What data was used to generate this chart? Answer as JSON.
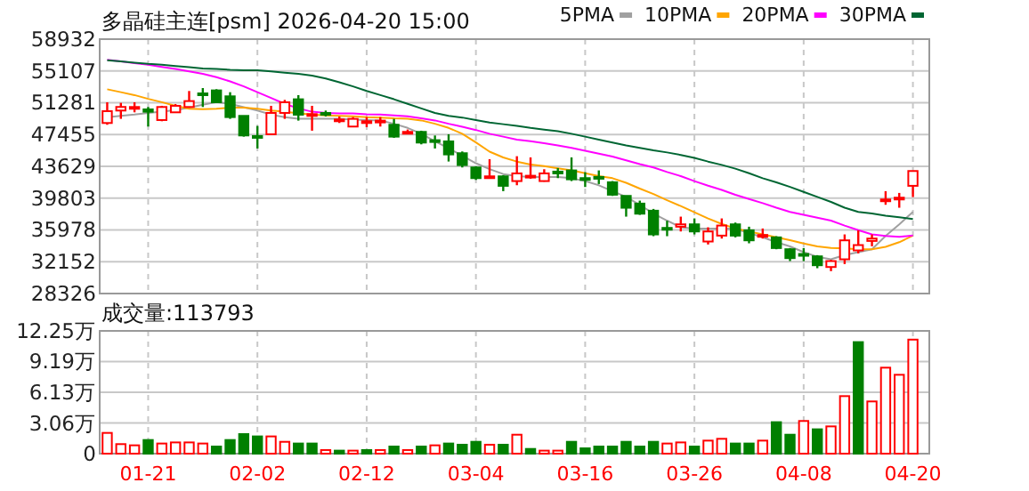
{
  "chart_data": [
    {
      "type": "candlestick",
      "title": "多晶硅主连[psm] 2026-04-20 15:00",
      "ohlc": [
        [
          48843,
          51338,
          48629,
          50269
        ],
        [
          50340,
          51267,
          49342,
          50774
        ],
        [
          50625,
          51338,
          50126,
          50768
        ],
        [
          50482,
          50768,
          48415,
          50197
        ],
        [
          49199,
          50910,
          49056,
          50768
        ],
        [
          50126,
          51124,
          50055,
          50910
        ],
        [
          50768,
          52693,
          50696,
          51481
        ],
        [
          52407,
          53049,
          50768,
          52265
        ],
        [
          52764,
          52906,
          51267,
          51338
        ],
        [
          52051,
          52551,
          49342,
          49555
        ],
        [
          49698,
          49698,
          47202,
          47345
        ],
        [
          47274,
          48486,
          45776,
          47131
        ],
        [
          47487,
          50910,
          47416,
          50055
        ],
        [
          50055,
          51623,
          49342,
          51338
        ],
        [
          51695,
          52194,
          49128,
          49841
        ],
        [
          49769,
          50910,
          47915,
          49912
        ],
        [
          50055,
          50340,
          49627,
          49912
        ],
        [
          49056,
          49627,
          48843,
          49270
        ],
        [
          48415,
          49555,
          48344,
          49342
        ],
        [
          48914,
          49555,
          48344,
          49056
        ],
        [
          48985,
          49555,
          48415,
          49128
        ],
        [
          48629,
          49342,
          47060,
          47202
        ],
        [
          47630,
          48059,
          47487,
          47773
        ],
        [
          47773,
          47915,
          46275,
          46489
        ],
        [
          46774,
          47345,
          45776,
          46560
        ],
        [
          46631,
          47487,
          44208,
          45063
        ],
        [
          45206,
          45420,
          43494,
          43780
        ],
        [
          43494,
          43637,
          41997,
          42211
        ],
        [
          42282,
          44493,
          42211,
          42425
        ],
        [
          42425,
          42567,
          40643,
          41284
        ],
        [
          41855,
          44849,
          41355,
          42781
        ],
        [
          42282,
          44707,
          42140,
          42496
        ],
        [
          41855,
          43281,
          41784,
          42781
        ],
        [
          42995,
          43423,
          42211,
          42781
        ],
        [
          43138,
          44707,
          41855,
          42068
        ],
        [
          42211,
          42924,
          41142,
          42068
        ],
        [
          42354,
          43138,
          41498,
          42140
        ],
        [
          41712,
          41855,
          40072,
          40215
        ],
        [
          40072,
          40072,
          37577,
          38647
        ],
        [
          39146,
          39502,
          37791,
          37934
        ],
        [
          38291,
          38504,
          35225,
          35438
        ],
        [
          36222,
          37078,
          35225,
          36080
        ],
        [
          36365,
          37577,
          35794,
          36650
        ],
        [
          36650,
          37363,
          35438,
          35794
        ],
        [
          34583,
          36294,
          34226,
          35794
        ],
        [
          35295,
          37363,
          34939,
          36507
        ],
        [
          36650,
          36864,
          35082,
          35295
        ],
        [
          35937,
          36365,
          34369,
          34725
        ],
        [
          35153,
          36151,
          34939,
          35367
        ],
        [
          35082,
          35225,
          33656,
          33798
        ],
        [
          33656,
          33798,
          32230,
          32586
        ],
        [
          33085,
          33798,
          32230,
          32871
        ],
        [
          32800,
          32943,
          31373,
          31730
        ],
        [
          31517,
          32372,
          31017,
          32230
        ],
        [
          32443,
          35438,
          31873,
          34725
        ],
        [
          33513,
          35937,
          33157,
          34155
        ],
        [
          34654,
          35438,
          34012,
          34939
        ],
        [
          39431,
          40643,
          39003,
          39645
        ],
        [
          39645,
          40429,
          38647,
          39858
        ],
        [
          41284,
          43067,
          39930,
          43067
        ]
      ],
      "colors": [
        "#ff0000",
        "#ff0000",
        "#ff0000",
        "#008000",
        "#ff0000",
        "#ff0000",
        "#ff0000",
        "#008000",
        "#008000",
        "#008000",
        "#008000",
        "#008000",
        "#ff0000",
        "#ff0000",
        "#008000",
        "#ff0000",
        "#008000",
        "#ff0000",
        "#ff0000",
        "#ff0000",
        "#ff0000",
        "#008000",
        "#ff0000",
        "#008000",
        "#008000",
        "#008000",
        "#008000",
        "#008000",
        "#ff0000",
        "#008000",
        "#ff0000",
        "#ff0000",
        "#ff0000",
        "#008000",
        "#008000",
        "#008000",
        "#008000",
        "#008000",
        "#008000",
        "#008000",
        "#008000",
        "#008000",
        "#ff0000",
        "#008000",
        "#ff0000",
        "#ff0000",
        "#008000",
        "#008000",
        "#ff0000",
        "#008000",
        "#008000",
        "#008000",
        "#008000",
        "#ff0000",
        "#ff0000",
        "#ff0000",
        "#ff0000",
        "#ff0000",
        "#ff0000",
        "#ff0000"
      ],
      "series": [
        {
          "type": "line",
          "name": "5PMA",
          "color": "#a0a0a0",
          "values": [
            49550,
            49700,
            49850,
            50050,
            50200,
            50400,
            50700,
            51050,
            51350,
            51150,
            50750,
            50350,
            49850,
            49550,
            49350,
            49350,
            49350,
            49350,
            49250,
            49200,
            49150,
            48750,
            48250,
            47550,
            46650,
            45800,
            44900,
            44000,
            43300,
            42700,
            42450,
            42350,
            42350,
            42350,
            42200,
            41850,
            41350,
            40650,
            39950,
            39000,
            37950,
            37100,
            36300,
            36150,
            36150,
            36150,
            36100,
            35600,
            35100,
            34500,
            34000,
            33300,
            32750,
            32450,
            32950,
            33300,
            33650,
            35250,
            36650,
            38150
          ]
        },
        {
          "type": "line",
          "name": "10PMA",
          "color": "#ffa500",
          "values": [
            52900,
            52550,
            52200,
            51750,
            51350,
            50900,
            50550,
            50500,
            50550,
            50700,
            50700,
            50550,
            50350,
            50200,
            50000,
            49850,
            49750,
            49700,
            49650,
            49550,
            49500,
            49400,
            49350,
            49150,
            48750,
            48250,
            47550,
            46500,
            45400,
            44700,
            44200,
            43850,
            43650,
            43400,
            43150,
            42800,
            42450,
            42200,
            41650,
            40950,
            40300,
            39550,
            38850,
            38100,
            37350,
            36700,
            36150,
            35800,
            35450,
            35100,
            34750,
            34350,
            34000,
            33800,
            33750,
            33650,
            33650,
            33950,
            34500,
            35300
          ]
        },
        {
          "type": "line",
          "name": "20PMA",
          "color": "#ff00ff",
          "values": [
            56450,
            56250,
            56050,
            55850,
            55600,
            55350,
            55050,
            54750,
            54350,
            53850,
            53250,
            52550,
            51850,
            51150,
            50600,
            50200,
            50050,
            50000,
            50000,
            49900,
            49850,
            49750,
            49650,
            49400,
            49150,
            48750,
            48400,
            48000,
            47550,
            47200,
            46850,
            46650,
            46400,
            46150,
            45850,
            45500,
            45150,
            44800,
            44350,
            43900,
            43500,
            42950,
            42450,
            41850,
            41300,
            40800,
            40200,
            39700,
            39200,
            38650,
            38150,
            37800,
            37450,
            37100,
            36500,
            35950,
            35450,
            35250,
            35150,
            35300
          ]
        },
        {
          "type": "line",
          "name": "30PMA",
          "color": "#006633",
          "values": [
            56400,
            56250,
            56100,
            55950,
            55850,
            55700,
            55550,
            55400,
            55350,
            55250,
            55200,
            55200,
            55050,
            54900,
            54750,
            54550,
            54200,
            53750,
            53250,
            52700,
            52200,
            51700,
            51150,
            50600,
            50050,
            49700,
            49500,
            49200,
            48900,
            48700,
            48500,
            48250,
            48050,
            47850,
            47550,
            47200,
            46850,
            46500,
            46150,
            45850,
            45550,
            45300,
            45000,
            44650,
            44200,
            43800,
            43350,
            42800,
            42200,
            41700,
            41150,
            40550,
            39950,
            39350,
            38650,
            38150,
            37950,
            37700,
            37500,
            37300
          ]
        }
      ],
      "ylim": [
        28326,
        58932
      ],
      "yticks": [
        28326,
        32152,
        35978,
        39803,
        43629,
        47455,
        51281,
        55107,
        58932
      ],
      "grid": true,
      "legend": "top right"
    },
    {
      "type": "bar",
      "title": "成交量:113793",
      "categories": [
        null,
        null,
        null,
        "01-21",
        null,
        null,
        null,
        null,
        null,
        null,
        null,
        "02-02",
        null,
        null,
        null,
        null,
        null,
        null,
        null,
        "02-12",
        null,
        null,
        null,
        null,
        null,
        null,
        null,
        "03-04",
        null,
        null,
        null,
        null,
        null,
        null,
        null,
        "03-16",
        null,
        null,
        null,
        null,
        null,
        null,
        null,
        "03-26",
        null,
        null,
        null,
        null,
        null,
        null,
        null,
        "04-08",
        null,
        null,
        null,
        null,
        null,
        null,
        null,
        "04-20"
      ],
      "values": [
        2.07,
        0.95,
        0.83,
        1.36,
        1.01,
        1.12,
        1.12,
        1.01,
        0.71,
        1.36,
        1.95,
        1.72,
        1.72,
        1.18,
        1.01,
        1.01,
        0.36,
        0.3,
        0.3,
        0.36,
        0.36,
        0.71,
        0.36,
        0.71,
        0.83,
        1.01,
        0.89,
        1.18,
        0.89,
        0.89,
        1.89,
        0.47,
        0.3,
        0.3,
        1.18,
        0.53,
        0.71,
        0.71,
        1.18,
        0.71,
        1.18,
        1.01,
        1.12,
        0.71,
        1.3,
        1.48,
        1.01,
        1.01,
        1.3,
        3.14,
        1.89,
        3.26,
        2.43,
        2.72,
        5.74,
        11.13,
        5.21,
        8.58,
        7.87,
        11.38
      ],
      "colors": [
        "#ff0000",
        "#ff0000",
        "#ff0000",
        "#008000",
        "#ff0000",
        "#ff0000",
        "#ff0000",
        "#ff0000",
        "#008000",
        "#008000",
        "#008000",
        "#008000",
        "#ff0000",
        "#ff0000",
        "#008000",
        "#008000",
        "#ff0000",
        "#008000",
        "#ff0000",
        "#008000",
        "#ff0000",
        "#008000",
        "#ff0000",
        "#008000",
        "#ff0000",
        "#008000",
        "#008000",
        "#008000",
        "#ff0000",
        "#008000",
        "#ff0000",
        "#008000",
        "#ff0000",
        "#ff0000",
        "#008000",
        "#008000",
        "#008000",
        "#008000",
        "#008000",
        "#008000",
        "#008000",
        "#ff0000",
        "#ff0000",
        "#008000",
        "#ff0000",
        "#ff0000",
        "#008000",
        "#008000",
        "#ff0000",
        "#008000",
        "#008000",
        "#ff0000",
        "#008000",
        "#ff0000",
        "#ff0000",
        "#008000",
        "#ff0000",
        "#ff0000",
        "#ff0000",
        "#ff0000"
      ],
      "ylim": [
        0,
        12.25
      ],
      "yticks": [
        0,
        {
          "value": 3.06,
          "label": "3.06万"
        },
        {
          "value": 6.13,
          "label": "6.13万"
        },
        {
          "value": 9.19,
          "label": "9.19万"
        },
        {
          "value": 12.25,
          "label": "12.25万"
        }
      ],
      "grid": true
    }
  ]
}
